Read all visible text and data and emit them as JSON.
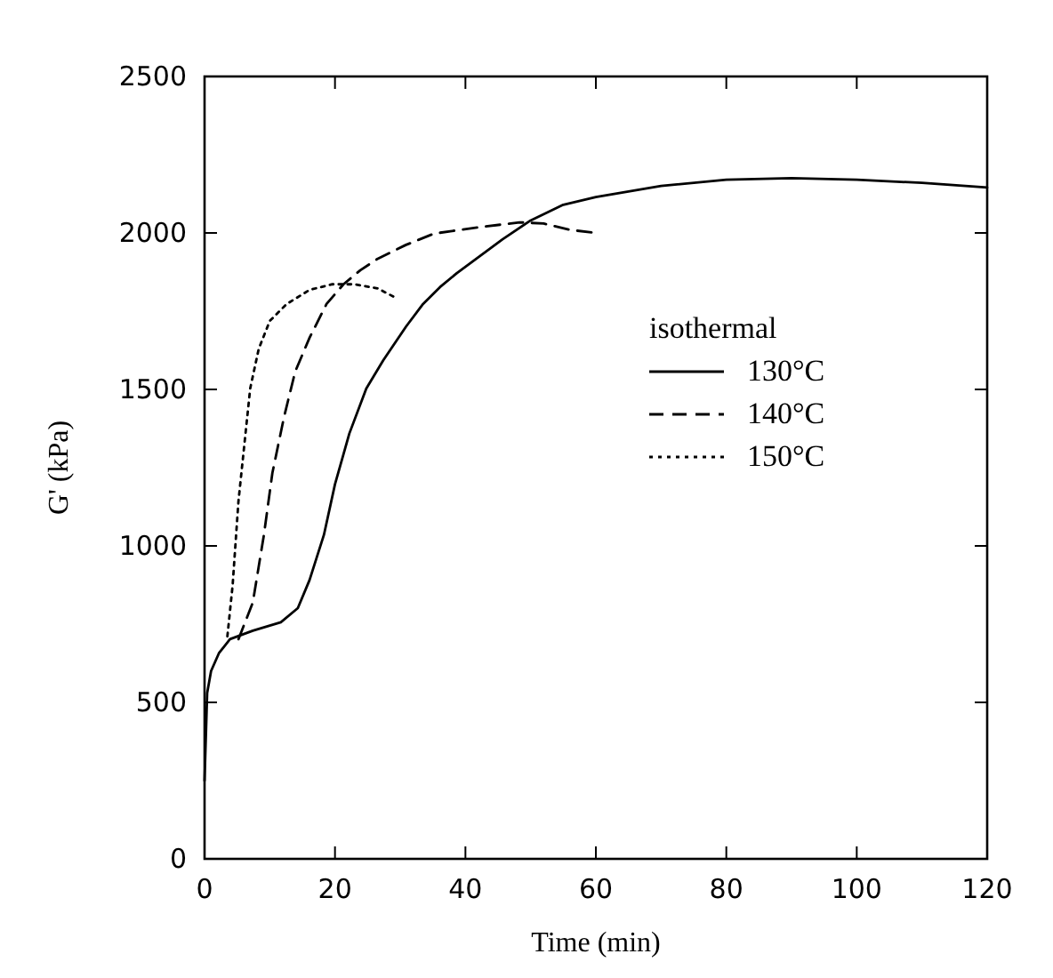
{
  "chart_data": {
    "type": "line",
    "xlabel": "Time (min)",
    "ylabel": "G' (kPa)",
    "legend_title": "isothermal",
    "legend": "right",
    "grid": false,
    "xlim": [
      0,
      120
    ],
    "xticks": [
      0,
      20,
      40,
      60,
      80,
      100,
      120
    ],
    "ylim": [
      0,
      2500
    ],
    "yticks": [
      0,
      500,
      1000,
      1500,
      2000,
      2500
    ],
    "series": [
      {
        "name": "130°C",
        "color": "#000000",
        "line_style": "solid",
        "x": [
          0,
          0.4,
          1,
          2.2,
          3.9,
          7.4,
          11.7,
          14.3,
          16.1,
          18.3,
          20,
          22.2,
          24.8,
          27.4,
          30.9,
          33.5,
          36.1,
          38.7,
          42.2,
          45.7,
          50,
          55,
          60,
          70,
          80,
          90,
          100,
          110,
          120
        ],
        "values": [
          250,
          530,
          600,
          657,
          702,
          729,
          756,
          801,
          891,
          1035,
          1197,
          1359,
          1503,
          1593,
          1701,
          1773,
          1827,
          1872,
          1926,
          1980,
          2040,
          2090,
          2115,
          2150,
          2170,
          2175,
          2170,
          2160,
          2145
        ]
      },
      {
        "name": "140°C",
        "color": "#000000",
        "line_style": "dashed",
        "x": [
          5.2,
          7.4,
          9.1,
          10.4,
          12.2,
          13.9,
          16.1,
          18.7,
          21.3,
          23.9,
          26.5,
          30.9,
          35.2,
          41.3,
          48.3,
          52,
          56,
          60
        ],
        "values": [
          702,
          819,
          1035,
          1233,
          1413,
          1557,
          1665,
          1773,
          1836,
          1881,
          1917,
          1962,
          1998,
          2016,
          2034,
          2030,
          2010,
          2000
        ]
      },
      {
        "name": "150°C",
        "color": "#000000",
        "line_style": "dotted",
        "x": [
          3.5,
          4.3,
          5.2,
          6.1,
          7,
          8.3,
          10,
          12.6,
          16.1,
          19.6,
          23,
          26.5,
          29.5
        ],
        "values": [
          711,
          873,
          1143,
          1323,
          1503,
          1629,
          1719,
          1773,
          1818,
          1836,
          1836,
          1823,
          1791
        ]
      }
    ]
  }
}
